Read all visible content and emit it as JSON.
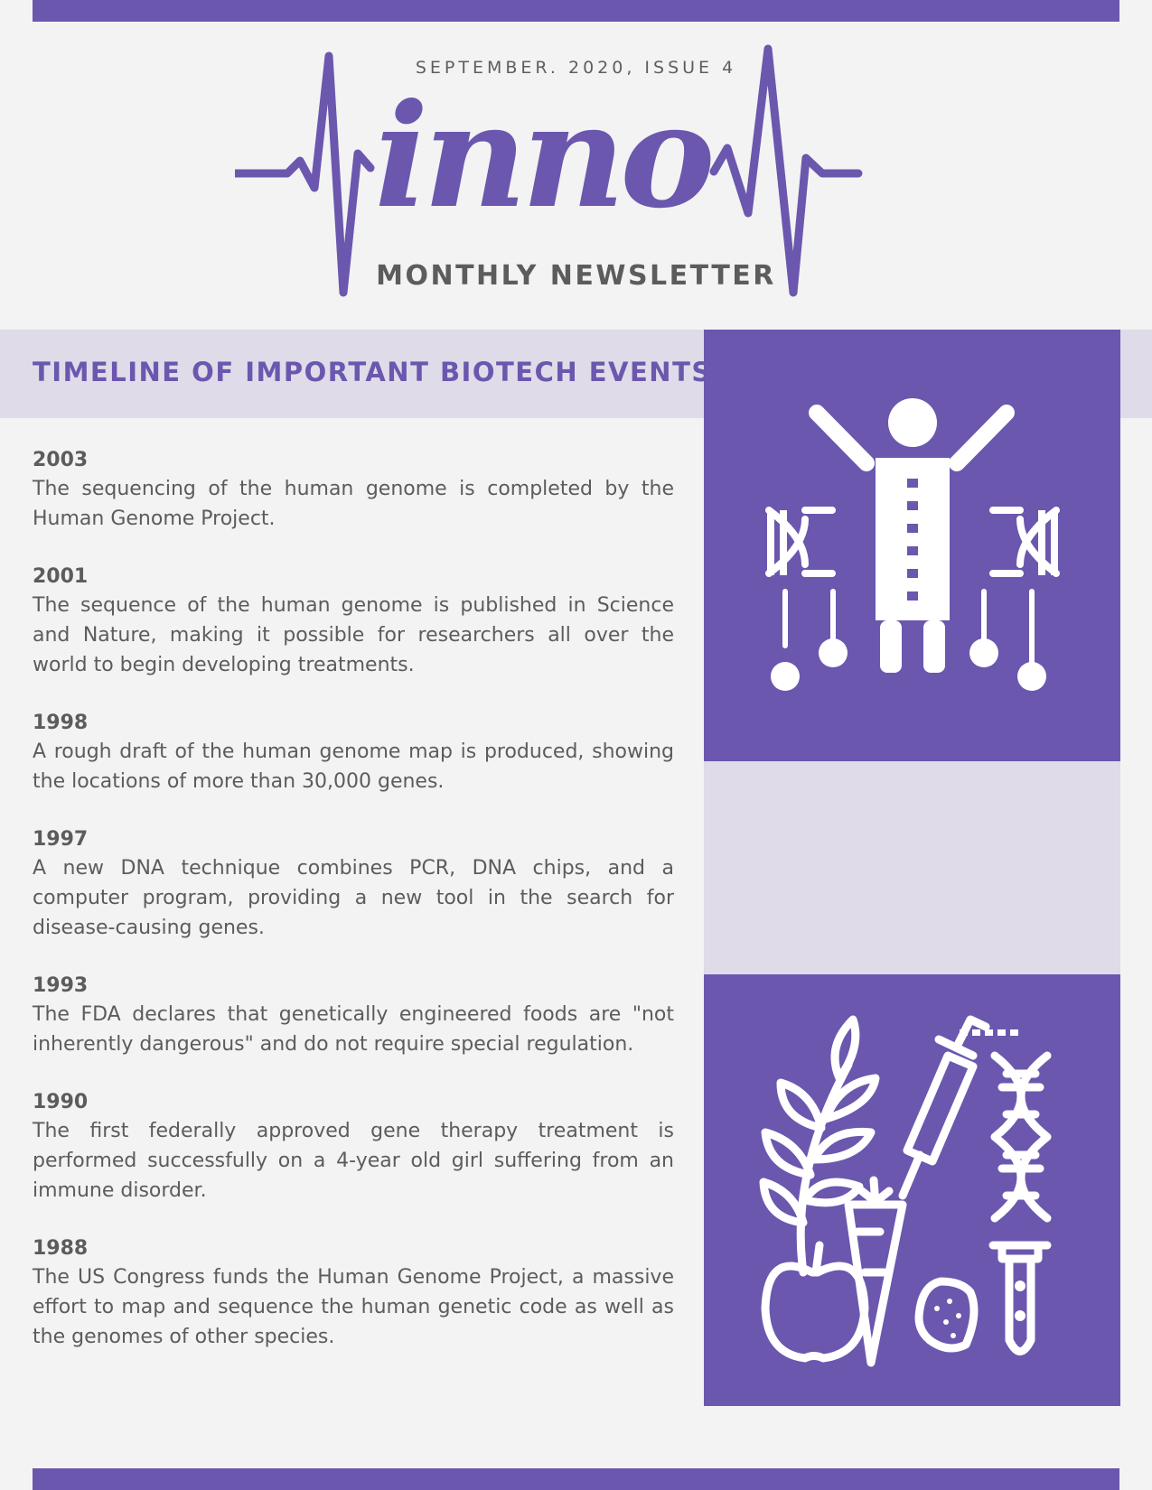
{
  "header": {
    "issue_line": "SEPTEMBER. 2020, ISSUE 4",
    "logo_wordmark": "inno",
    "subtitle": "MONTHLY NEWSLETTER"
  },
  "section": {
    "title": "TIMELINE OF IMPORTANT BIOTECH EVENTS"
  },
  "timeline": [
    {
      "year": "2003",
      "text": "The sequencing of the human genome is completed by the Human Genome Project."
    },
    {
      "year": "2001",
      "text": "The sequence of the human genome is published in Science and Nature, making it possible for researchers all over the world to begin developing treatments."
    },
    {
      "year": "1998",
      "text": "A rough draft of the human genome map is produced, showing the locations of more than 30,000 genes."
    },
    {
      "year": "1997",
      "text": "A new DNA technique combines PCR, DNA chips, and a computer program, providing a new tool in the search for disease-causing genes."
    },
    {
      "year": "1993",
      "text": "The FDA declares that genetically engineered foods are \"not inherently dangerous\" and do not require special regulation."
    },
    {
      "year": "1990",
      "text": "The first federally approved gene therapy treatment is performed successfully on a 4-year old girl suffering from an immune disorder."
    },
    {
      "year": "1988",
      "text": "The US Congress funds the Human Genome Project, a massive effort to map and sequence the human genetic code as well as the genomes of other species."
    }
  ],
  "icons": {
    "top_panel": "scientist-dna-icon",
    "bottom_panel": "gmo-food-icon"
  },
  "colors": {
    "accent": "#6b57ae",
    "accent_light": "#dfdbe9",
    "background": "#f3f3f3",
    "text": "#5c5c5c"
  }
}
